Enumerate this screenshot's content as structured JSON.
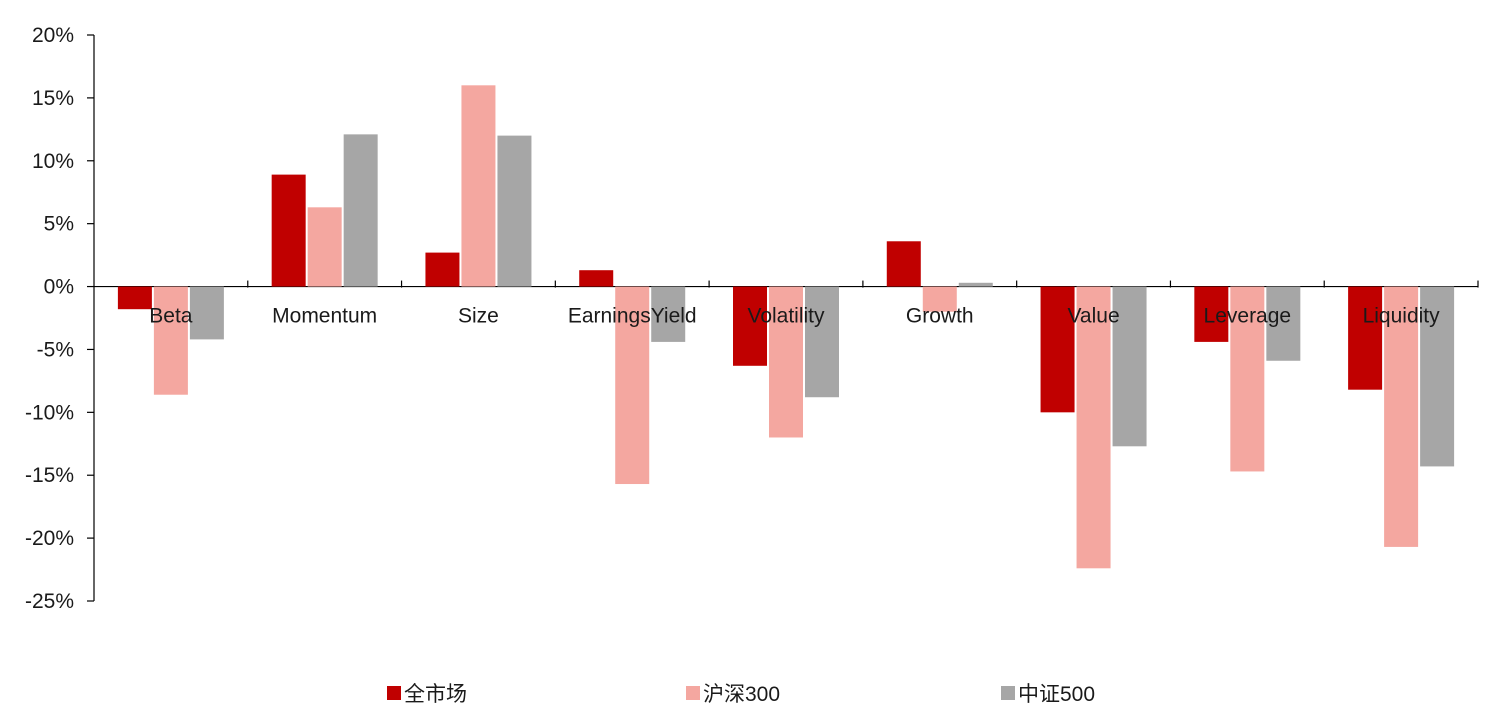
{
  "chart_data": {
    "type": "bar",
    "categories": [
      "Beta",
      "Momentum",
      "Size",
      "EarningsYield",
      "Volatility",
      "Growth",
      "Value",
      "Leverage",
      "Liquidity"
    ],
    "series": [
      {
        "name": "全市场",
        "color": "#c00000",
        "values": [
          -1.8,
          8.9,
          2.7,
          1.3,
          -6.3,
          3.6,
          -10.0,
          -4.4,
          -8.2
        ]
      },
      {
        "name": "沪深300",
        "color": "#f4a7a0",
        "values": [
          -8.6,
          6.3,
          16.0,
          -15.7,
          -12.0,
          -2.0,
          -22.4,
          -14.7,
          -20.7
        ]
      },
      {
        "name": "中证500",
        "color": "#a6a6a6",
        "values": [
          -4.2,
          12.1,
          12.0,
          -4.4,
          -8.8,
          0.3,
          -12.7,
          -5.9,
          -14.3
        ]
      }
    ],
    "ylim": [
      -25,
      20
    ],
    "yticks": [
      20,
      15,
      10,
      5,
      0,
      -5,
      -10,
      -15,
      -20,
      -25
    ],
    "ytick_format": "percent",
    "legend_position": "bottom",
    "grid": false
  }
}
